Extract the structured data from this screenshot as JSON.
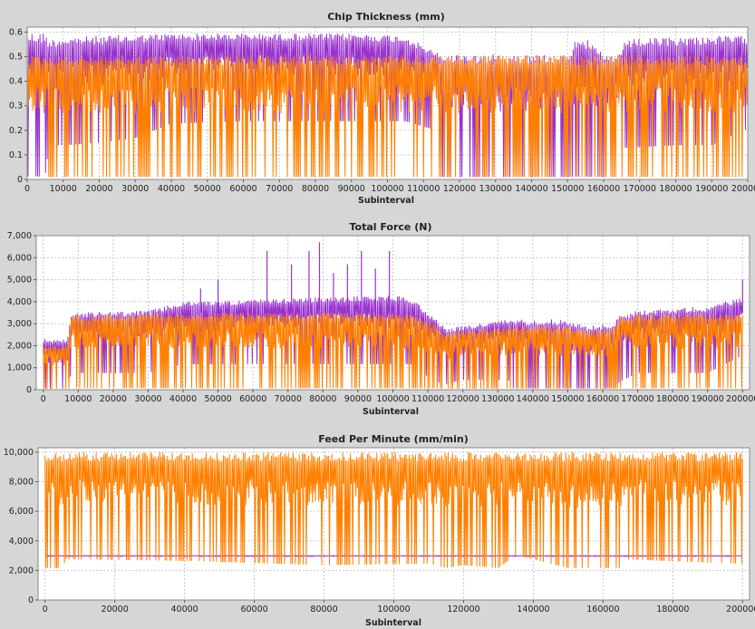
{
  "colors": {
    "background": "#d6d6d6",
    "plot_bg": "#ffffff",
    "grid": "#c8c8c8",
    "series_a": "#9933cc",
    "series_b": "#ff8000"
  },
  "chart_data": [
    {
      "type": "line",
      "title": "Chip Thickness (mm)",
      "xlabel": "Subinterval",
      "ylabel": "",
      "xlim": [
        0,
        200000
      ],
      "ylim": [
        0,
        0.62
      ],
      "grid": true,
      "x_ticks": [
        0,
        10000,
        20000,
        30000,
        40000,
        50000,
        60000,
        70000,
        80000,
        90000,
        100000,
        110000,
        120000,
        130000,
        140000,
        150000,
        160000,
        170000,
        180000,
        190000,
        200000
      ],
      "x_tick_labels": [
        "0",
        "10000",
        "20000",
        "30000",
        "40000",
        "50000",
        "60000",
        "70000",
        "80000",
        "90000",
        "100000",
        "110000",
        "120000",
        "130000",
        "140000",
        "150000",
        "160000",
        "170000",
        "180000",
        "190000",
        "200000"
      ],
      "y_ticks": [
        0,
        0.1,
        0.2,
        0.3,
        0.4,
        0.5,
        0.6
      ],
      "y_tick_labels": [
        "0",
        "0.1",
        "0.2",
        "0.3",
        "0.4",
        "0.5",
        "0.6"
      ],
      "series": [
        {
          "color": "#9933cc",
          "envelope": {
            "x": [
              0,
              5000,
              6000,
              10000,
              20000,
              30000,
              40000,
              60000,
              90000,
              105000,
              112000,
              115000,
              120000,
              130000,
              135000,
              150000,
              153000,
              160000,
              165000,
              166000,
              180000,
              190000,
              200000
            ],
            "max": [
              0.6,
              0.6,
              0.57,
              0.58,
              0.585,
              0.59,
              0.595,
              0.595,
              0.595,
              0.585,
              0.53,
              0.51,
              0.51,
              0.51,
              0.51,
              0.51,
              0.6,
              0.51,
              0.51,
              0.57,
              0.58,
              0.585,
              0.585
            ],
            "min": [
              0.0,
              0.0,
              0.13,
              0.13,
              0.14,
              0.16,
              0.22,
              0.23,
              0.23,
              0.23,
              0.2,
              0.0,
              0.0,
              0.0,
              0.0,
              0.0,
              0.0,
              0.0,
              0.12,
              0.12,
              0.13,
              0.13,
              0.2
            ]
          }
        },
        {
          "color": "#ff8000",
          "envelope": {
            "x": [
              0,
              5000,
              6000,
              10000,
              20000,
              30000,
              40000,
              60000,
              90000,
              105000,
              112000,
              115000,
              120000,
              130000,
              135000,
              150000,
              153000,
              160000,
              165000,
              166000,
              180000,
              190000,
              200000
            ],
            "max": [
              0.505,
              0.505,
              0.505,
              0.505,
              0.505,
              0.505,
              0.505,
              0.505,
              0.505,
              0.505,
              0.505,
              0.505,
              0.505,
              0.505,
              0.505,
              0.505,
              0.505,
              0.505,
              0.505,
              0.505,
              0.505,
              0.505,
              0.505
            ],
            "min": [
              0.0,
              0.0,
              0.0,
              0.0,
              0.0,
              0.0,
              0.0,
              0.0,
              0.0,
              0.0,
              0.0,
              0.0,
              0.0,
              0.0,
              0.0,
              0.0,
              0.0,
              0.0,
              0.0,
              0.0,
              0.0,
              0.0,
              0.0
            ]
          }
        }
      ]
    },
    {
      "type": "line",
      "title": "Total Force (N)",
      "xlabel": "Subinterval",
      "ylabel": "",
      "xlim": [
        -2000,
        202000
      ],
      "ylim": [
        0,
        7000
      ],
      "grid": true,
      "x_ticks": [
        0,
        10000,
        20000,
        30000,
        40000,
        50000,
        60000,
        70000,
        80000,
        90000,
        100000,
        110000,
        120000,
        130000,
        140000,
        150000,
        160000,
        170000,
        180000,
        190000,
        200000
      ],
      "x_tick_labels": [
        "0",
        "10000",
        "20000",
        "30000",
        "40000",
        "50000",
        "60000",
        "70000",
        "80000",
        "90000",
        "100000",
        "110000",
        "120000",
        "130000",
        "140000",
        "150000",
        "160000",
        "170000",
        "180000",
        "190000",
        "200000"
      ],
      "y_ticks": [
        0,
        1000,
        2000,
        3000,
        4000,
        5000,
        6000,
        7000
      ],
      "y_tick_labels": [
        "0",
        "1,000",
        "2,000",
        "3,000",
        "4,000",
        "5,000",
        "6,000",
        "7,000"
      ],
      "series": [
        {
          "color": "#9933cc",
          "envelope": {
            "x": [
              0,
              7000,
              8000,
              30000,
              40000,
              60000,
              80000,
              100000,
              105000,
              112000,
              115000,
              120000,
              133000,
              134000,
              140000,
              150000,
              155000,
              163000,
              165000,
              170000,
              190000,
              200000
            ],
            "max": [
              2300,
              2300,
              3500,
              3600,
              4000,
              4100,
              4200,
              4300,
              4200,
              3300,
              2800,
              2900,
              3200,
              3200,
              3200,
              3200,
              2900,
              3000,
              3400,
              3600,
              3800,
              4200
            ],
            "min": [
              0,
              0,
              700,
              700,
              1100,
              1100,
              1100,
              1100,
              1100,
              300,
              200,
              400,
              400,
              0,
              0,
              0,
              0,
              0,
              300,
              700,
              700,
              1500
            ]
          }
        },
        {
          "color": "#ff8000",
          "envelope": {
            "x": [
              0,
              7000,
              8000,
              30000,
              40000,
              60000,
              80000,
              100000,
              105000,
              112000,
              115000,
              120000,
              133000,
              134000,
              140000,
              150000,
              155000,
              163000,
              165000,
              170000,
              190000,
              200000
            ],
            "max": [
              2000,
              2000,
              3400,
              3450,
              3500,
              3500,
              3500,
              3500,
              3450,
              3000,
              2600,
              2700,
              2900,
              2900,
              2900,
              2900,
              2700,
              2800,
              3300,
              3450,
              3450,
              3450
            ],
            "min": [
              0,
              0,
              0,
              0,
              0,
              0,
              0,
              0,
              0,
              0,
              0,
              0,
              0,
              0,
              0,
              0,
              0,
              0,
              0,
              0,
              0,
              0
            ]
          }
        }
      ],
      "spikes": [
        {
          "x": 64000,
          "y": 6300
        },
        {
          "x": 71000,
          "y": 5700
        },
        {
          "x": 76000,
          "y": 6300
        },
        {
          "x": 79000,
          "y": 6700
        },
        {
          "x": 83000,
          "y": 5300
        },
        {
          "x": 87000,
          "y": 5700
        },
        {
          "x": 91000,
          "y": 6300
        },
        {
          "x": 95000,
          "y": 5500
        },
        {
          "x": 99000,
          "y": 6300
        },
        {
          "x": 50000,
          "y": 5000
        },
        {
          "x": 45000,
          "y": 4600
        },
        {
          "x": 200000,
          "y": 5000
        }
      ]
    },
    {
      "type": "line",
      "title": "Feed Per Minute (mm/min)",
      "xlabel": "Subinterval",
      "ylabel": "",
      "xlim": [
        -2000,
        202000
      ],
      "ylim": [
        0,
        10300
      ],
      "grid": true,
      "x_ticks": [
        0,
        20000,
        40000,
        60000,
        80000,
        100000,
        120000,
        140000,
        160000,
        180000,
        200000
      ],
      "x_tick_labels": [
        "0",
        "20000",
        "40000",
        "60000",
        "80000",
        "100000",
        "120000",
        "140000",
        "160000",
        "180000",
        "200000"
      ],
      "y_ticks": [
        0,
        2000,
        4000,
        6000,
        8000,
        10000
      ],
      "y_tick_labels": [
        "0",
        "2,000",
        "4,000",
        "6,000",
        "8,000",
        "10,000"
      ],
      "series": [
        {
          "color": "#9933cc",
          "envelope": {
            "x": [
              0,
              200000
            ],
            "max": [
              3000,
              3000
            ],
            "min": [
              2950,
              2950
            ]
          }
        },
        {
          "color": "#ff8000",
          "envelope": {
            "x": [
              0,
              5000,
              6000,
              40000,
              80000,
              110000,
              115000,
              120000,
              130000,
              135000,
              150000,
              165000,
              166000,
              200000
            ],
            "max": [
              10000,
              10000,
              10000,
              10000,
              10000,
              10000,
              10000,
              10000,
              10000,
              10000,
              10000,
              10000,
              10000,
              10000
            ],
            "min": [
              2000,
              2000,
              2600,
              2500,
              2200,
              2300,
              2000,
              2200,
              2000,
              2900,
              2000,
              2000,
              2600,
              2300
            ]
          }
        }
      ]
    }
  ]
}
